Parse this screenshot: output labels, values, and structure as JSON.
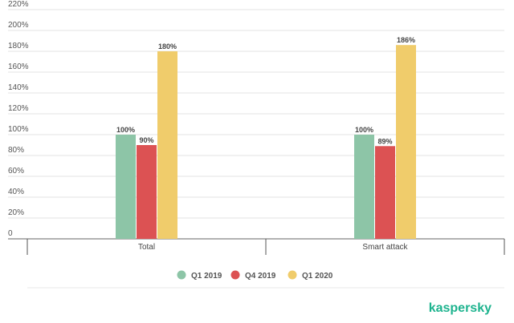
{
  "chart_data": {
    "type": "bar",
    "categories": [
      "Total",
      "Smart attack"
    ],
    "series": [
      {
        "name": "Q1 2019",
        "color": "#8dc5a7",
        "values": [
          100,
          100
        ],
        "labels": [
          "100%",
          "100%"
        ]
      },
      {
        "name": "Q4 2019",
        "color": "#dc5253",
        "values": [
          90,
          89
        ],
        "labels": [
          "90%",
          "89%"
        ]
      },
      {
        "name": "Q1 2020",
        "color": "#f0cc6b",
        "values": [
          180,
          186
        ],
        "labels": [
          "180%",
          "186%"
        ]
      }
    ],
    "ylim": [
      0,
      220
    ],
    "y_ticks": [
      {
        "value": 0,
        "label": "0"
      },
      {
        "value": 20,
        "label": "20%"
      },
      {
        "value": 40,
        "label": "40%"
      },
      {
        "value": 60,
        "label": "60%"
      },
      {
        "value": 80,
        "label": "80%"
      },
      {
        "value": 100,
        "label": "100%"
      },
      {
        "value": 120,
        "label": "120%"
      },
      {
        "value": 140,
        "label": "140%"
      },
      {
        "value": 160,
        "label": "160%"
      },
      {
        "value": 180,
        "label": "180%"
      },
      {
        "value": 200,
        "label": "200%"
      },
      {
        "value": 220,
        "label": "220%"
      }
    ],
    "grid": true,
    "legend_position": "bottom-center",
    "title": "",
    "xlabel": "",
    "ylabel": ""
  },
  "brand": {
    "name": "kaspersky",
    "color": "#1db38e"
  }
}
